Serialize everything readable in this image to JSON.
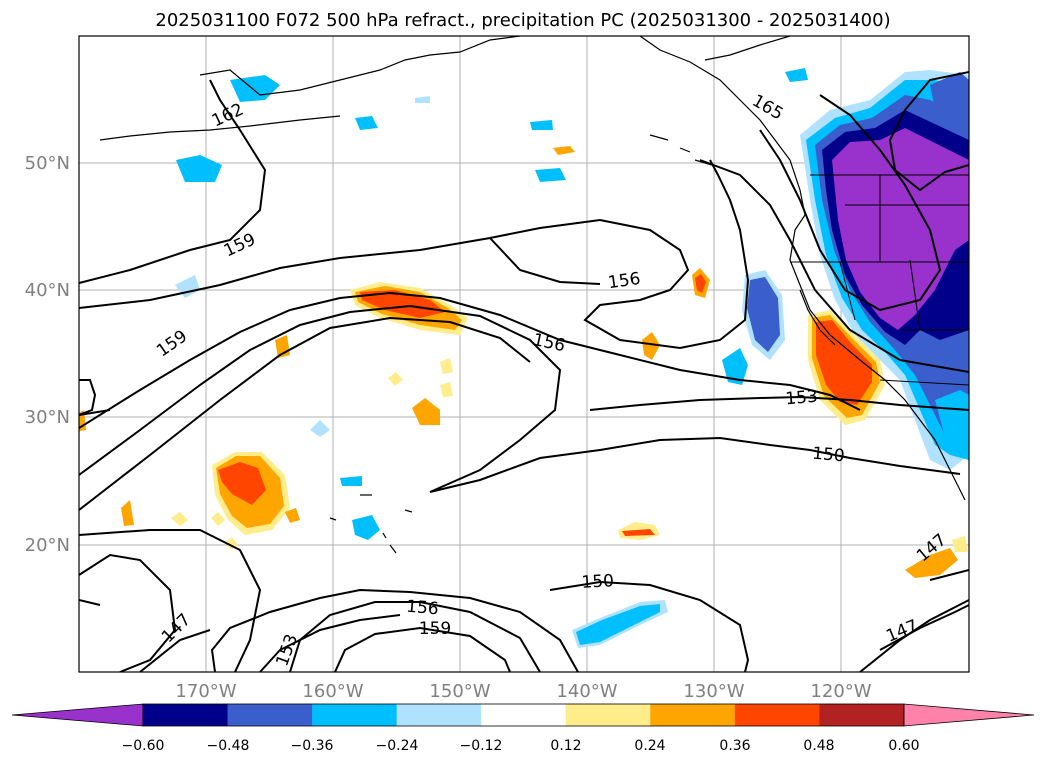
{
  "title": "2025031100 F072 500 hPa refract., precipitation PC (2025031300 - 2025031400)",
  "lat_labels": [
    "20°N",
    "30°N",
    "40°N",
    "50°N"
  ],
  "lon_labels": [
    "170°W",
    "160°W",
    "150°W",
    "140°W",
    "130°W",
    "120°W"
  ],
  "contour_labels": [
    "162",
    "159",
    "159",
    "156",
    "156",
    "153",
    "150",
    "150",
    "165",
    "156",
    "159",
    "153",
    "147",
    "147",
    "147"
  ],
  "colorbar": {
    "ticks": [
      "−0.60",
      "−0.48",
      "−0.36",
      "−0.24",
      "−0.12",
      "0.12",
      "0.24",
      "0.36",
      "0.48",
      "0.60"
    ],
    "colors": [
      "#9932cc",
      "#00008b",
      "#3a5fcd",
      "#00bfff",
      "#b0e2ff",
      "#ffffff",
      "#ffec8b",
      "#ffa500",
      "#ff4500",
      "#b22222",
      "#ff82ab"
    ]
  },
  "colors": {
    "purple": "#9932cc",
    "navy": "#00008b",
    "blue": "#3a5fcd",
    "cyan": "#00bfff",
    "lightblue": "#b0e2ff",
    "yellow": "#ffec8b",
    "orange": "#ffa500",
    "red": "#ff4500"
  }
}
